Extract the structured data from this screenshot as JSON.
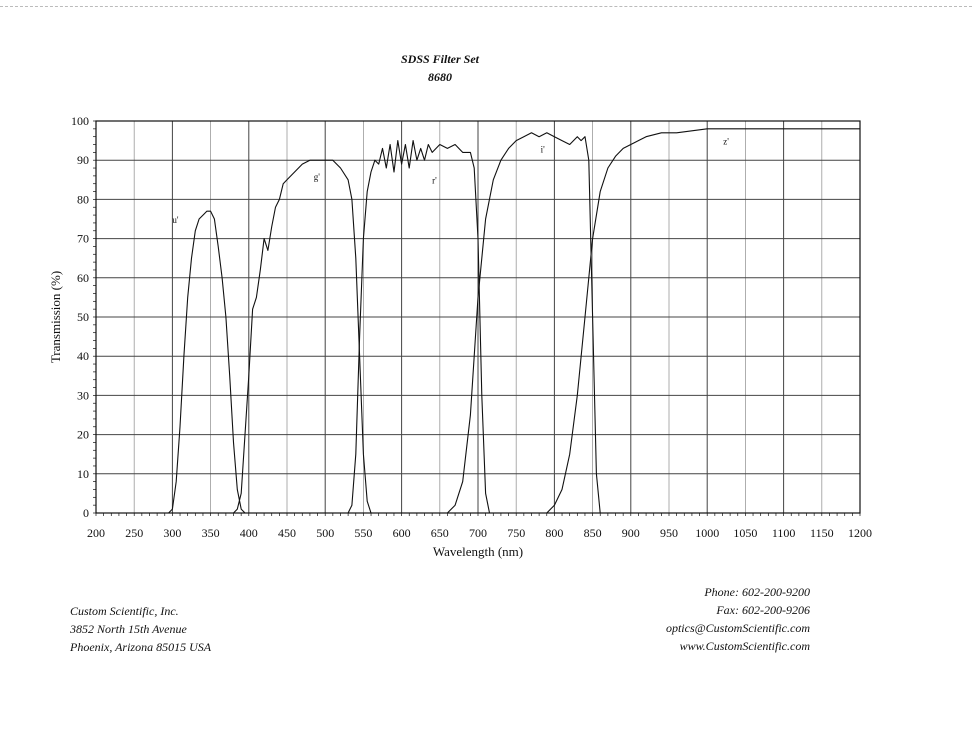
{
  "chart_data": {
    "type": "line",
    "title": "SDSS Filter Set",
    "subtitle": "8680",
    "xlabel": "Wavelength (nm)",
    "ylabel": "Transmission (%)",
    "xlim": [
      200,
      1200
    ],
    "ylim": [
      0,
      100
    ],
    "xticks": [
      200,
      250,
      300,
      350,
      400,
      450,
      500,
      550,
      600,
      650,
      700,
      750,
      800,
      850,
      900,
      950,
      1000,
      1050,
      1100,
      1150,
      1200
    ],
    "yticks": [
      0,
      10,
      20,
      30,
      40,
      50,
      60,
      70,
      80,
      90,
      100
    ],
    "grid": true,
    "series_color": "#111111",
    "series": [
      {
        "name": "u'",
        "label_at": [
          300,
          74
        ],
        "x": [
          295,
          300,
          305,
          310,
          315,
          320,
          325,
          330,
          335,
          340,
          345,
          350,
          355,
          360,
          365,
          370,
          375,
          380,
          385,
          390,
          395
        ],
        "y": [
          0,
          1,
          8,
          22,
          40,
          55,
          65,
          72,
          75,
          76,
          77,
          77,
          75,
          68,
          60,
          50,
          35,
          18,
          6,
          1,
          0
        ]
      },
      {
        "name": "g'",
        "label_at": [
          485,
          85
        ],
        "x": [
          380,
          385,
          390,
          395,
          400,
          405,
          410,
          415,
          420,
          425,
          430,
          435,
          440,
          445,
          450,
          455,
          460,
          470,
          480,
          490,
          500,
          510,
          520,
          530,
          535,
          540,
          545,
          550,
          555,
          560
        ],
        "y": [
          0,
          1,
          5,
          20,
          35,
          52,
          55,
          62,
          70,
          67,
          73,
          78,
          80,
          84,
          85,
          86,
          87,
          89,
          90,
          90,
          90,
          90,
          88,
          85,
          80,
          65,
          40,
          15,
          3,
          0
        ]
      },
      {
        "name": "r'",
        "label_at": [
          640,
          84
        ],
        "x": [
          530,
          535,
          540,
          545,
          550,
          555,
          560,
          565,
          570,
          575,
          580,
          585,
          590,
          595,
          600,
          605,
          610,
          615,
          620,
          625,
          630,
          635,
          640,
          650,
          660,
          670,
          680,
          690,
          695,
          700,
          705,
          710,
          715
        ],
        "y": [
          0,
          2,
          15,
          45,
          70,
          82,
          87,
          90,
          89,
          93,
          88,
          94,
          87,
          95,
          89,
          94,
          88,
          95,
          90,
          93,
          90,
          94,
          92,
          94,
          93,
          94,
          92,
          92,
          88,
          70,
          30,
          5,
          0
        ]
      },
      {
        "name": "i'",
        "label_at": [
          782,
          92
        ],
        "x": [
          660,
          670,
          680,
          690,
          700,
          710,
          720,
          730,
          740,
          750,
          760,
          770,
          780,
          790,
          800,
          810,
          820,
          830,
          835,
          840,
          845,
          850,
          855,
          860
        ],
        "y": [
          0,
          2,
          8,
          25,
          55,
          75,
          85,
          90,
          93,
          95,
          96,
          97,
          96,
          97,
          96,
          95,
          94,
          96,
          95,
          96,
          90,
          50,
          10,
          0
        ]
      },
      {
        "name": "z'",
        "label_at": [
          1021,
          94
        ],
        "x": [
          790,
          800,
          810,
          820,
          830,
          840,
          850,
          860,
          870,
          880,
          890,
          900,
          910,
          920,
          940,
          960,
          1000,
          1050,
          1100,
          1150,
          1200
        ],
        "y": [
          0,
          2,
          6,
          15,
          30,
          50,
          70,
          82,
          88,
          91,
          93,
          94,
          95,
          96,
          97,
          97,
          98,
          98,
          98,
          98,
          98
        ]
      }
    ]
  },
  "company": {
    "name": "Custom Scientific, Inc.",
    "street": "3852 North 15th Avenue",
    "city": "Phoenix, Arizona 85015 USA"
  },
  "contact": {
    "phone": "Phone:  602-200-9200",
    "fax": "Fax:  602-200-9206",
    "email": "optics@CustomScientific.com",
    "web": "www.CustomScientific.com"
  }
}
